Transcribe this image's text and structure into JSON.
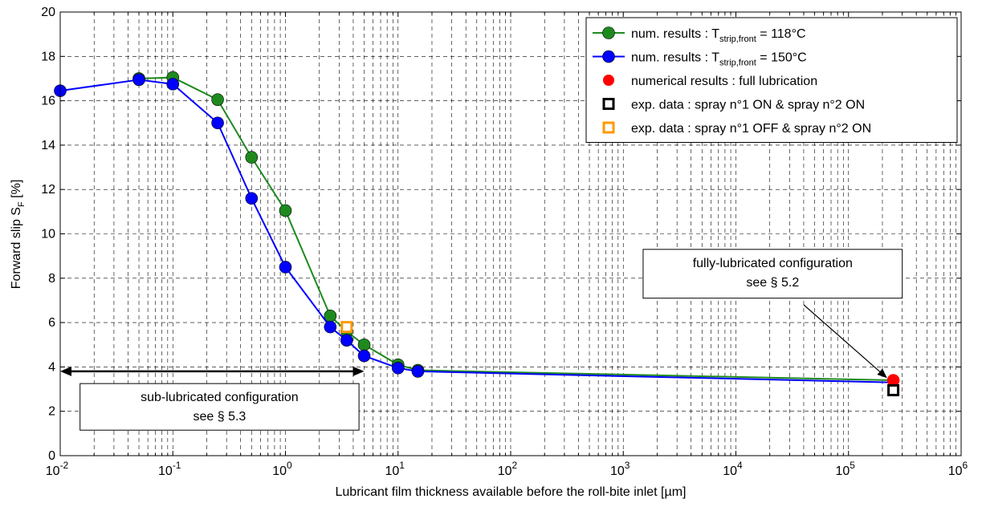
{
  "chart_data": {
    "type": "line",
    "x_scale": "log",
    "xlim": [
      0.01,
      1000000
    ],
    "ylim": [
      0,
      20
    ],
    "grid": true,
    "xlabel": "Lubricant film thickness available before the roll-bite inlet [µm]",
    "ylabel": {
      "main": "Forward slip S",
      "sub": "F",
      "tail": " [%]"
    },
    "x_ticks": [
      {
        "value": 0.01,
        "base": "10",
        "exp": "-2"
      },
      {
        "value": 0.1,
        "base": "10",
        "exp": "-1"
      },
      {
        "value": 1,
        "base": "10",
        "exp": "0"
      },
      {
        "value": 10,
        "base": "10",
        "exp": "1"
      },
      {
        "value": 100,
        "base": "10",
        "exp": "2"
      },
      {
        "value": 1000,
        "base": "10",
        "exp": "3"
      },
      {
        "value": 10000,
        "base": "10",
        "exp": "4"
      },
      {
        "value": 100000,
        "base": "10",
        "exp": "5"
      },
      {
        "value": 1000000,
        "base": "10",
        "exp": "6"
      }
    ],
    "y_ticks": [
      "0",
      "2",
      "4",
      "6",
      "8",
      "10",
      "12",
      "14",
      "16",
      "18",
      "20"
    ],
    "legend_position": "top-right",
    "series": [
      {
        "name": {
          "pre": "num. results : T",
          "sub": "strip,front",
          "post": " = 118°C"
        },
        "color": "#1e8a1e",
        "marker": "circle",
        "line": true,
        "x": [
          0.05,
          0.1,
          0.25,
          0.5,
          1,
          2.5,
          3.5,
          5,
          10,
          15
        ],
        "y": [
          17.0,
          17.05,
          16.05,
          13.45,
          11.05,
          6.3,
          5.6,
          5.0,
          4.1,
          3.85
        ]
      },
      {
        "name": {
          "pre": "num. results : T",
          "sub": "strip,front",
          "post": " = 150°C"
        },
        "color": "#0000ff",
        "marker": "circle",
        "line": true,
        "x": [
          0.01,
          0.05,
          0.1,
          0.25,
          0.5,
          1,
          2.5,
          3.5,
          5,
          10,
          15,
          250000
        ],
        "y": [
          16.45,
          16.95,
          16.75,
          15.0,
          11.6,
          8.5,
          5.8,
          5.2,
          4.5,
          3.95,
          3.8,
          3.3
        ]
      },
      {
        "name": {
          "pre": "numerical results : full lubrication",
          "sub": "",
          "post": ""
        },
        "color": "#ff0000",
        "marker": "circle",
        "line": false,
        "x": [
          250000
        ],
        "y": [
          3.4
        ]
      },
      {
        "name": {
          "pre": "exp. data : spray n°1 ON   & spray n°2 ON",
          "sub": "",
          "post": ""
        },
        "color": "#000000",
        "marker": "square",
        "line": false,
        "x": [
          250000
        ],
        "y": [
          2.95
        ]
      },
      {
        "name": {
          "pre": "exp. data : spray n°1 OFF & spray n°2 ON",
          "sub": "",
          "post": ""
        },
        "color": "#ff9900",
        "marker": "square",
        "line": false,
        "x": [
          3.5
        ],
        "y": [
          5.8
        ]
      }
    ],
    "green_end_point": {
      "x": 250000,
      "y": 3.4
    },
    "annotations": [
      {
        "id": "sub",
        "lines": [
          "sub-lubricated configuration",
          "see § 5.3"
        ],
        "arrow": {
          "type": "double",
          "x_from": 0.01,
          "x_to": 5,
          "y": 3.8
        },
        "box": {
          "x_from": 0.015,
          "x_to": 4.5,
          "y_top": 3.25,
          "y_bottom": 1.15
        }
      },
      {
        "id": "full",
        "lines": [
          "fully-lubricated configuration",
          "see § 5.2"
        ],
        "arrow": {
          "type": "single",
          "x_from": 40000,
          "y_from": 6.8,
          "x_to": 220000,
          "y_to": 3.5
        },
        "box": {
          "x_from": 1500,
          "x_to": 300000,
          "y_top": 9.3,
          "y_bottom": 7.1
        }
      }
    ]
  }
}
